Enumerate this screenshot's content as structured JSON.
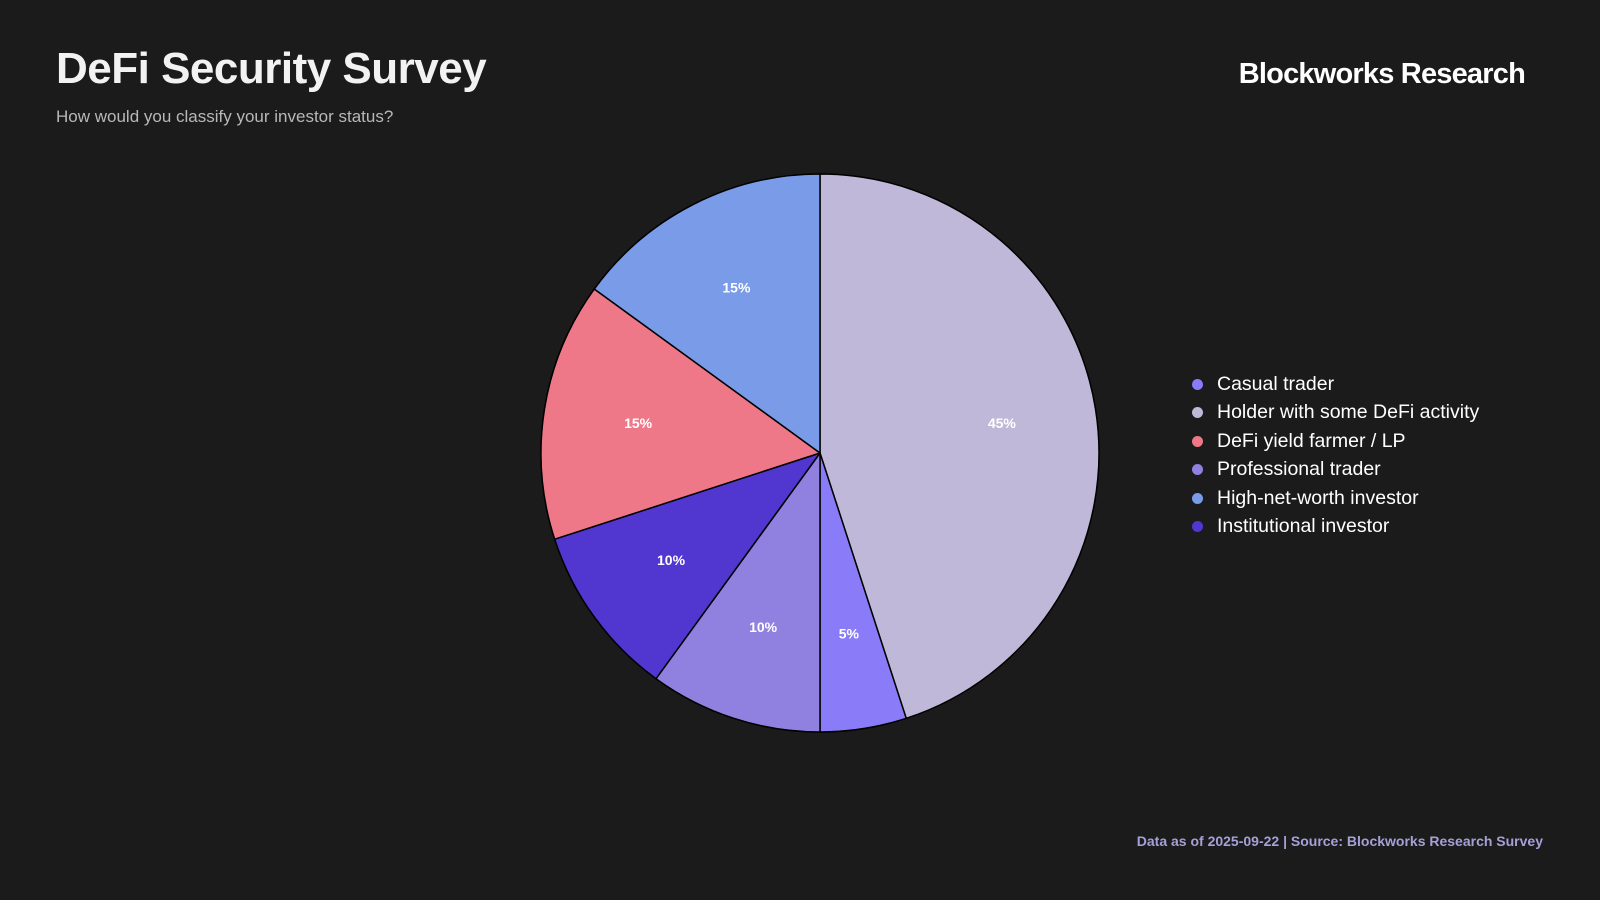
{
  "header": {
    "title": "DeFi Security Survey",
    "subtitle": "How would you classify your investor status?",
    "brand": "Blockworks Research"
  },
  "footer": {
    "source": "Data as of 2025-09-22 | Source: Blockworks Research Survey"
  },
  "chart_data": {
    "type": "pie",
    "title": "DeFi Security Survey",
    "subtitle": "How would you classify your investor status?",
    "legend_position": "right",
    "start": "12 o'clock",
    "direction": "clockwise",
    "slices": [
      {
        "label": "Holder with some DeFi activity",
        "value": 45,
        "display": "45%",
        "color": "#c0b8d8"
      },
      {
        "label": "Casual trader",
        "value": 5,
        "display": "5%",
        "color": "#8a7cf8"
      },
      {
        "label": "Professional trader",
        "value": 10,
        "display": "10%",
        "color": "#9080e0"
      },
      {
        "label": "Institutional investor",
        "value": 10,
        "display": "10%",
        "color": "#5236d0"
      },
      {
        "label": "DeFi yield farmer / LP",
        "value": 15,
        "display": "15%",
        "color": "#ef7888"
      },
      {
        "label": "High-net-worth investor",
        "value": 15,
        "display": "15%",
        "color": "#7a9ce8"
      }
    ],
    "legend": [
      {
        "label": "Casual trader",
        "color": "#8a7cf8"
      },
      {
        "label": "Holder with some DeFi activity",
        "color": "#c0b8d8"
      },
      {
        "label": "DeFi yield farmer / LP",
        "color": "#ef7888"
      },
      {
        "label": "Professional trader",
        "color": "#9080e0"
      },
      {
        "label": "High-net-worth investor",
        "color": "#7a9ce8"
      },
      {
        "label": "Institutional investor",
        "color": "#5236d0"
      }
    ]
  }
}
